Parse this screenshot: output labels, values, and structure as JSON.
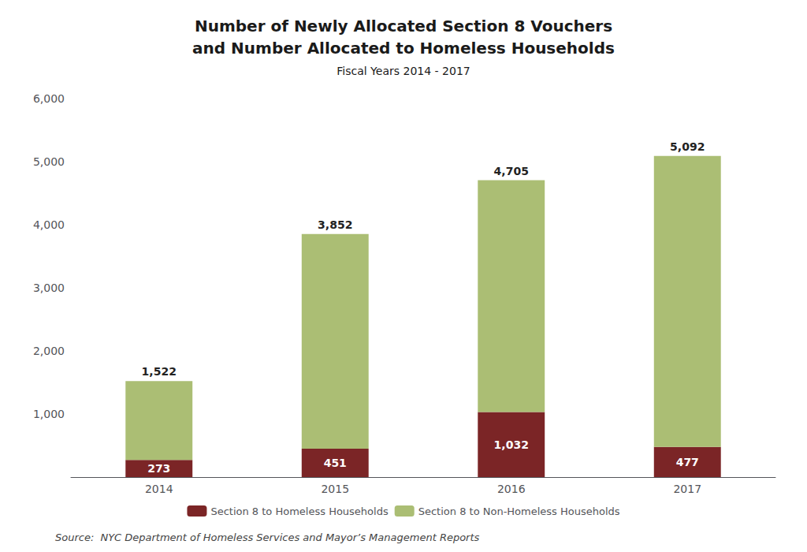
{
  "chart_data": {
    "type": "bar",
    "title": "Number of Newly Allocated Section 8 Vouchers\nand Number Allocated to Homeless Households",
    "subtitle": "Fiscal Years 2014 - 2017",
    "source": "Source:  NYC Department of Homeless Services and Mayor’s Management Reports",
    "categories": [
      "2014",
      "2015",
      "2016",
      "2017"
    ],
    "stacked": true,
    "series": [
      {
        "name": "Section 8 to Homeless Households",
        "color": "#7B2526",
        "values": [
          273,
          451,
          1032,
          477
        ],
        "data_labels": true,
        "value_labels": [
          "273",
          "451",
          "1,032",
          "477"
        ]
      },
      {
        "name": "Section 8 to Non-Homeless Households",
        "color": "#ABBE74",
        "values": [
          1249,
          3401,
          3673,
          4615
        ]
      }
    ],
    "totals": [
      1522,
      3852,
      4705,
      5092
    ],
    "total_labels": [
      "1,522",
      "3,852",
      "4,705",
      "5,092"
    ],
    "ylim": [
      0,
      6000
    ],
    "yticks": [
      {
        "value": 1000,
        "label": "1,000"
      },
      {
        "value": 2000,
        "label": "2,000"
      },
      {
        "value": 3000,
        "label": "3,000"
      },
      {
        "value": 4000,
        "label": "4,000"
      },
      {
        "value": 5000,
        "label": "5,000"
      },
      {
        "value": 6000,
        "label": "6,000"
      }
    ],
    "grid": false,
    "legend": "bottom"
  }
}
